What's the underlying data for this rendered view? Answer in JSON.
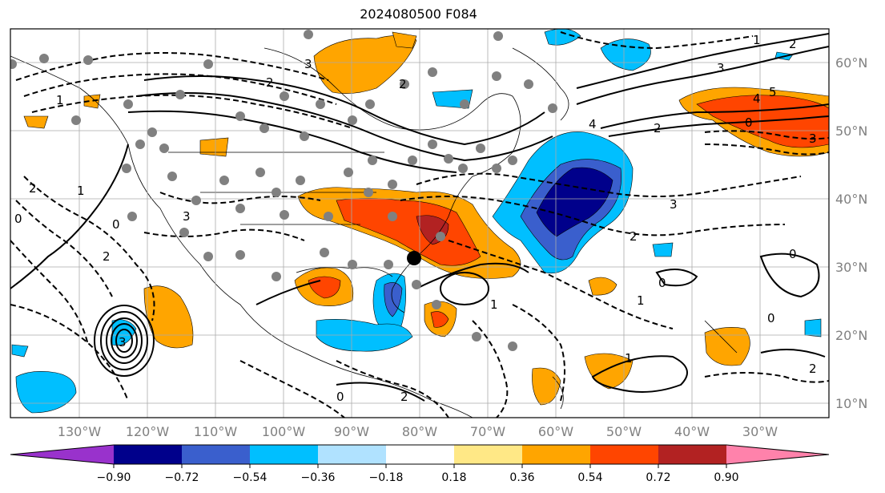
{
  "title": "2024080500 F084",
  "map": {
    "lon_ticks": [
      "130°W",
      "120°W",
      "110°W",
      "100°W",
      "90°W",
      "80°W",
      "70°W",
      "60°W",
      "50°W",
      "40°W",
      "30°W"
    ],
    "lat_ticks": [
      "60°N",
      "50°N",
      "40°N",
      "30°N",
      "20°N",
      "10°N"
    ],
    "contour_labels": [
      "0",
      "1",
      "2",
      "3",
      "2",
      "0",
      "2",
      "3",
      "4",
      "5",
      "3",
      "2",
      "1",
      "0",
      "2",
      "3",
      "4",
      "3",
      "2",
      "1",
      "0",
      "0",
      "1",
      "2",
      "3",
      "0",
      "1",
      "2",
      "1",
      "0",
      "2"
    ]
  },
  "colorbar": {
    "ticks": [
      "−0.90",
      "−0.72",
      "−0.54",
      "−0.36",
      "−0.18",
      "0.18",
      "0.36",
      "0.54",
      "0.72",
      "0.90"
    ],
    "colors": {
      "lt_-0.90": "#9932cc",
      "-0.90_-0.72": "#00008b",
      "-0.72_-0.54": "#3a5fcd",
      "-0.54_-0.36": "#00bfff",
      "-0.36_-0.18": "#b0e2ff",
      "-0.18_0.18": "#ffffff",
      "0.18_0.36": "#ffe886",
      "0.36_0.54": "#ffa500",
      "0.54_0.72": "#ff4500",
      "0.72_0.90": "#b22222",
      "gt_0.90": "#ff82ab"
    }
  }
}
